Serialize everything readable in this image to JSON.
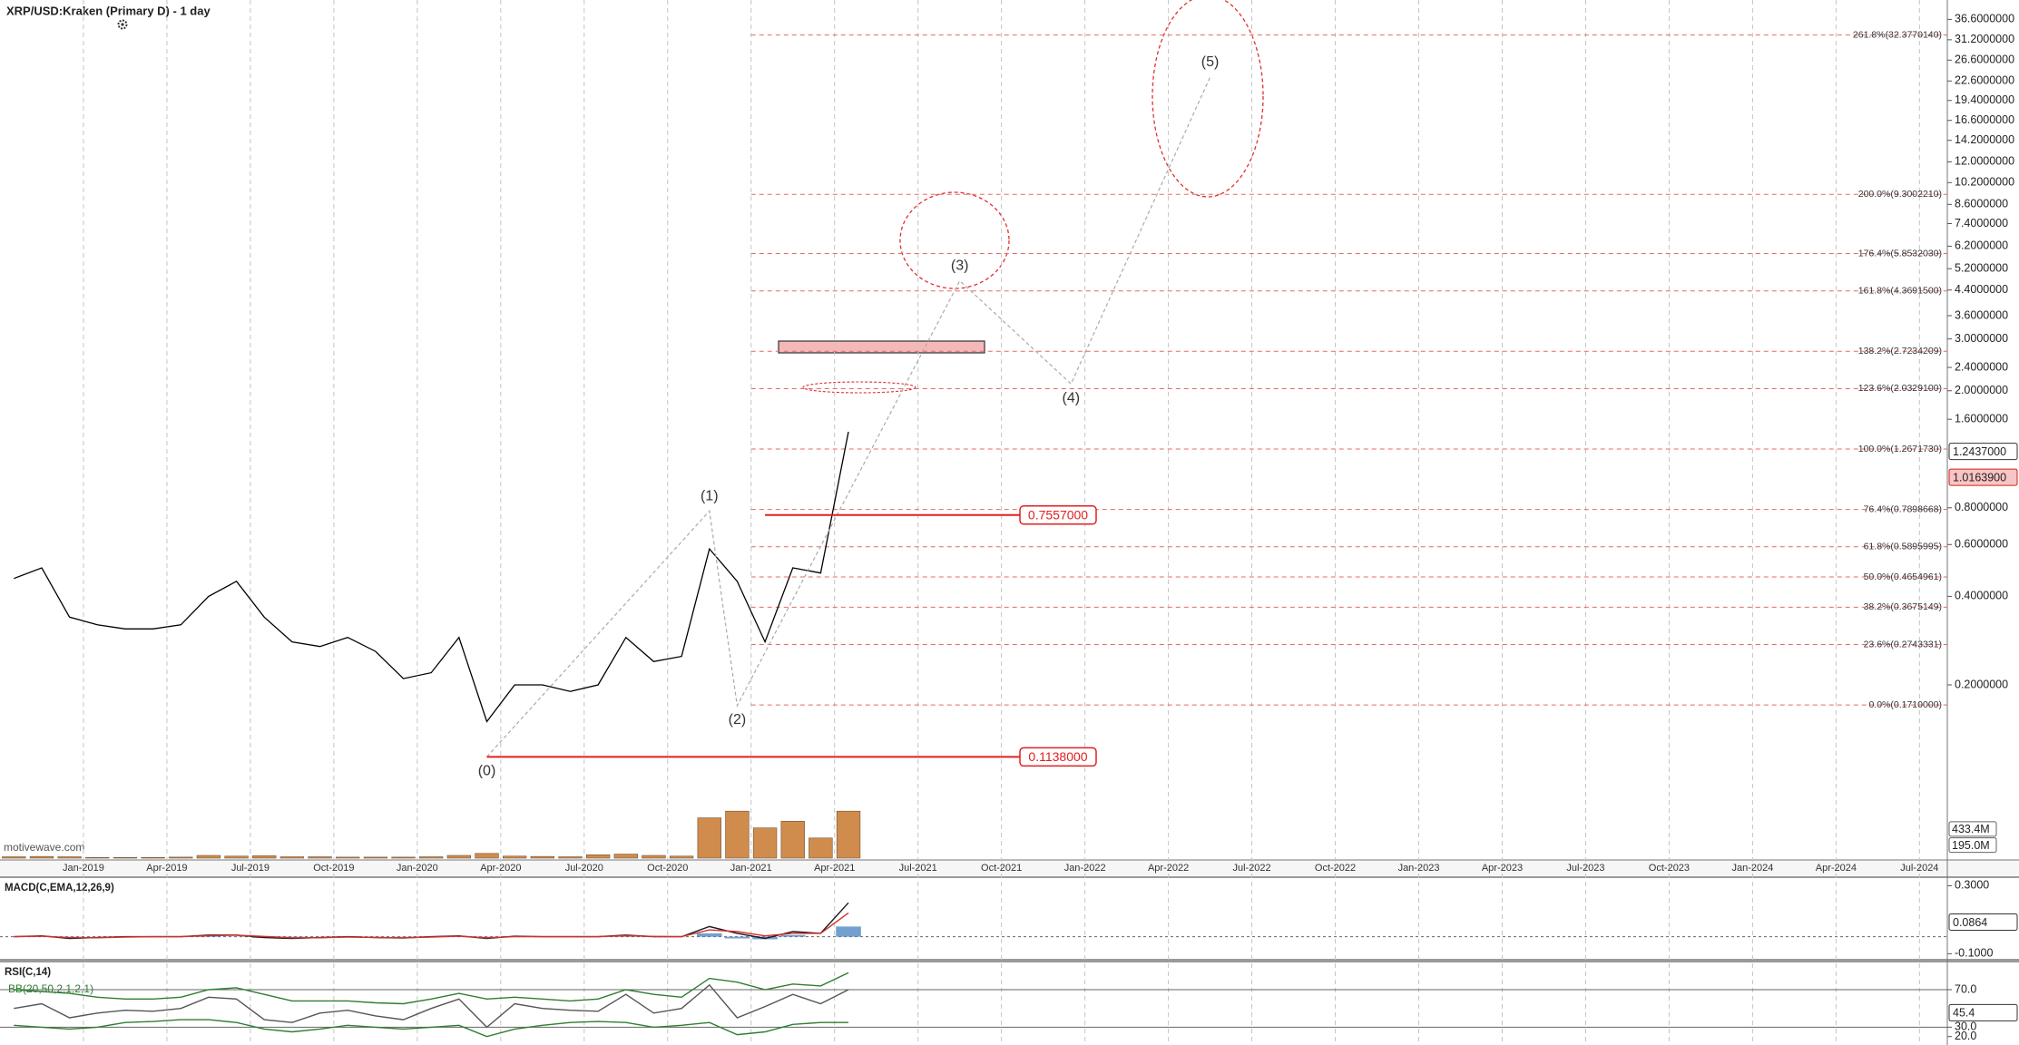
{
  "chart_data": [
    {
      "type": "line",
      "title": "XRP/USD:Kraken (Primary D) - 1 day",
      "watermark": "motivewave.com",
      "color": "#000000",
      "log_scale": true,
      "grid": true,
      "x": [
        "2018-10",
        "2018-11",
        "2018-12",
        "2019-01",
        "2019-02",
        "2019-03",
        "2019-04",
        "2019-05",
        "2019-06",
        "2019-07",
        "2019-08",
        "2019-09",
        "2019-10",
        "2019-11",
        "2019-12",
        "2020-01",
        "2020-02",
        "2020-03",
        "2020-04",
        "2020-05",
        "2020-06",
        "2020-07",
        "2020-08",
        "2020-09",
        "2020-10",
        "2020-11",
        "2020-12",
        "2021-01",
        "2021-02",
        "2021-03",
        "2021-04"
      ],
      "values": [
        0.46,
        0.5,
        0.34,
        0.32,
        0.31,
        0.31,
        0.32,
        0.4,
        0.45,
        0.34,
        0.28,
        0.27,
        0.29,
        0.26,
        0.21,
        0.22,
        0.29,
        0.15,
        0.2,
        0.2,
        0.19,
        0.2,
        0.29,
        0.24,
        0.25,
        0.58,
        0.45,
        0.28,
        0.5,
        0.48,
        1.45
      ],
      "xlim": [
        "2018-10",
        "2024-08"
      ],
      "xticks": [
        {
          "value": "2019-01",
          "label": "Jan-2019"
        },
        {
          "value": "2019-04",
          "label": "Apr-2019"
        },
        {
          "value": "2019-07",
          "label": "Jul-2019"
        },
        {
          "value": "2019-10",
          "label": "Oct-2019"
        },
        {
          "value": "2020-01",
          "label": "Jan-2020"
        },
        {
          "value": "2020-04",
          "label": "Apr-2020"
        },
        {
          "value": "2020-07",
          "label": "Jul-2020"
        },
        {
          "value": "2020-10",
          "label": "Oct-2020"
        },
        {
          "value": "2021-01",
          "label": "Jan-2021"
        },
        {
          "value": "2021-04",
          "label": "Apr-2021"
        },
        {
          "value": "2021-07",
          "label": "Jul-2021"
        },
        {
          "value": "2021-10",
          "label": "Oct-2021"
        },
        {
          "value": "2022-01",
          "label": "Jan-2022"
        },
        {
          "value": "2022-04",
          "label": "Apr-2022"
        },
        {
          "value": "2022-07",
          "label": "Jul-2022"
        },
        {
          "value": "2022-10",
          "label": "Oct-2022"
        },
        {
          "value": "2023-01",
          "label": "Jan-2023"
        },
        {
          "value": "2023-04",
          "label": "Apr-2023"
        },
        {
          "value": "2023-07",
          "label": "Jul-2023"
        },
        {
          "value": "2023-10",
          "label": "Oct-2023"
        },
        {
          "value": "2024-01",
          "label": "Jan-2024"
        },
        {
          "value": "2024-04",
          "label": "Apr-2024"
        },
        {
          "value": "2024-07",
          "label": "Jul-2024"
        }
      ],
      "ylim": [
        0.0508,
        42.6
      ],
      "yticks": [
        {
          "value": 36.6,
          "label": "36.6000000"
        },
        {
          "value": 31.2,
          "label": "31.2000000"
        },
        {
          "value": 26.6,
          "label": "26.6000000"
        },
        {
          "value": 22.6,
          "label": "22.6000000"
        },
        {
          "value": 19.4,
          "label": "19.4000000"
        },
        {
          "value": 16.6,
          "label": "16.6000000"
        },
        {
          "value": 14.2,
          "label": "14.2000000"
        },
        {
          "value": 12,
          "label": "12.0000000"
        },
        {
          "value": 10.2,
          "label": "10.2000000"
        },
        {
          "value": 8.6,
          "label": "8.6000000"
        },
        {
          "value": 7.4,
          "label": "7.4000000"
        },
        {
          "value": 6.2,
          "label": "6.2000000"
        },
        {
          "value": 5.2,
          "label": "5.2000000"
        },
        {
          "value": 4.4,
          "label": "4.4000000"
        },
        {
          "value": 3.6,
          "label": "3.6000000"
        },
        {
          "value": 3,
          "label": "3.0000000"
        },
        {
          "value": 2.4,
          "label": "2.4000000"
        },
        {
          "value": 2,
          "label": "2.0000000"
        },
        {
          "value": 1.6,
          "label": "1.6000000"
        },
        {
          "value": 0.8,
          "label": "0.8000000"
        },
        {
          "value": 0.6,
          "label": "0.6000000"
        },
        {
          "value": 0.4,
          "label": "0.4000000"
        },
        {
          "value": 0.2,
          "label": "0.2000000"
        }
      ],
      "price_tags": [
        {
          "value": 1.2437,
          "label": "1.2437000",
          "fill": "#ffffff",
          "stroke": "#333333"
        },
        {
          "value": 1.01639,
          "label": "1.0163900",
          "fill": "#f9c4c4",
          "stroke": "#d02020"
        }
      ],
      "volume": {
        "color": "#c8782e",
        "values": [
          20000000,
          25000000,
          20000000,
          10000000,
          10000000,
          10000000,
          15000000,
          40000000,
          30000000,
          35000000,
          20000000,
          20000000,
          15000000,
          15000000,
          15000000,
          20000000,
          40000000,
          70000000,
          30000000,
          25000000,
          20000000,
          50000000,
          60000000,
          40000000,
          30000000,
          600000000,
          700000000,
          450000000,
          550000000,
          300000000,
          700000000
        ],
        "ylim": [
          0,
          3000000000
        ],
        "yticks": [
          {
            "value": 433400000,
            "label": "433.4M"
          },
          {
            "value": 195000000,
            "label": "195.0M"
          }
        ]
      },
      "fib_levels": {
        "from": "2021-01",
        "color": "#e46a6a",
        "levels": [
          {
            "value": 32.377014,
            "label": "261.8%(32.3770140)"
          },
          {
            "value": 9.300221,
            "label": "200.0%(9.3002210)"
          },
          {
            "value": 5.853203,
            "label": "176.4%(5.8532030)"
          },
          {
            "value": 4.36915,
            "label": "161.8%(4.3691500)"
          },
          {
            "value": 2.7234209,
            "label": "138.2%(2.7234209)"
          },
          {
            "value": 2.03291,
            "label": "123.6%(2.0329100)"
          },
          {
            "value": 1.267173,
            "label": "100.0%(1.2671730)"
          },
          {
            "value": 0.7898668,
            "label": "76.4%(0.7898668)"
          },
          {
            "value": 0.5895995,
            "label": "61.8%(0.5895995)"
          },
          {
            "value": 0.4654961,
            "label": "50.0%(0.4654961)"
          },
          {
            "value": 0.3675149,
            "label": "38.2%(0.3675149)"
          },
          {
            "value": 0.2743331,
            "label": "23.6%(0.2743331)"
          },
          {
            "value": 0.171,
            "label": "0.0%(0.1710000)"
          }
        ]
      },
      "waves": {
        "color": "#aaaaaa",
        "points": [
          {
            "label": "(0)",
            "x": "2020-03",
            "value": 0.1138,
            "position": "below"
          },
          {
            "label": "(1)",
            "x": "2020-11",
            "value": 0.78,
            "position": "above"
          },
          {
            "label": "(2)",
            "x": "2020-12",
            "value": 0.17,
            "position": "below"
          },
          {
            "label": "(3)",
            "x": "2021-08",
            "value": 4.73,
            "position": "above"
          },
          {
            "label": "(4)",
            "x": "2021-12",
            "value": 2.11,
            "position": "below"
          },
          {
            "label": "(5)",
            "x": "2022-05",
            "value": 23.3,
            "position": "above"
          }
        ]
      },
      "hlines": [
        {
          "x": "2020-03",
          "value": 0.1138,
          "label": "0.1138000",
          "color": "#e02020"
        },
        {
          "x": "2021-01",
          "value": 0.7557,
          "label": "0.7557000",
          "color": "#e02020"
        }
      ]
    },
    {
      "type": "line",
      "title": "MACD(C,EMA,12,26,9)",
      "x": [
        "2018-10",
        "2018-11",
        "2018-12",
        "2019-01",
        "2019-02",
        "2019-03",
        "2019-04",
        "2019-05",
        "2019-06",
        "2019-07",
        "2019-08",
        "2019-09",
        "2019-10",
        "2019-11",
        "2019-12",
        "2020-01",
        "2020-02",
        "2020-03",
        "2020-04",
        "2020-05",
        "2020-06",
        "2020-07",
        "2020-08",
        "2020-09",
        "2020-10",
        "2020-11",
        "2020-12",
        "2021-01",
        "2021-02",
        "2021-03",
        "2021-04"
      ],
      "xlim": [
        "2018-10",
        "2024-08"
      ],
      "ylim": [
        -0.13,
        0.345
      ],
      "yticks": [
        {
          "value": 0.3,
          "label": "0.3000"
        },
        {
          "value": -0.1,
          "label": "-0.1000"
        }
      ],
      "ref_lines": [
        0
      ],
      "series": [
        {
          "color": "#1a1a1a",
          "values": [
            0,
            0.005,
            -0.01,
            -0.005,
            0,
            0,
            0,
            0.01,
            0.01,
            -0.005,
            -0.01,
            -0.005,
            0,
            -0.005,
            -0.008,
            0,
            0.005,
            -0.01,
            0.003,
            0,
            0,
            0,
            0.01,
            0,
            0,
            0.06,
            0.02,
            -0.01,
            0.03,
            0.02,
            0.2
          ]
        },
        {
          "color": "#d03030",
          "values": [
            0,
            0.003,
            -0.005,
            -0.006,
            -0.002,
            0,
            0,
            0.006,
            0.009,
            0.002,
            -0.006,
            -0.006,
            -0.002,
            -0.004,
            -0.006,
            -0.002,
            0.003,
            -0.006,
            0,
            0,
            0,
            0,
            0.006,
            0.002,
            0,
            0.04,
            0.03,
            0.005,
            0.02,
            0.02,
            0.14
          ]
        }
      ],
      "histogram": {
        "color": "#5b8fc7",
        "values": [
          0,
          0.002,
          -0.005,
          0.001,
          0.002,
          0,
          0,
          0.004,
          0.001,
          -0.007,
          -0.004,
          0.001,
          0.002,
          -0.001,
          -0.002,
          0.002,
          0.002,
          -0.004,
          0.003,
          0,
          0,
          0,
          0.004,
          -0.002,
          0,
          0.02,
          -0.01,
          -0.015,
          0.01,
          0,
          0.06
        ]
      },
      "price_tags": [
        {
          "value": 0.0864,
          "label": "0.0864",
          "fill": "#ffffff",
          "stroke": "#333333"
        }
      ]
    },
    {
      "type": "line",
      "title": "RSI(C,14)",
      "subtitle": "BB(20,50,2,1,2,1)",
      "x": [
        "2018-10",
        "2018-11",
        "2018-12",
        "2019-01",
        "2019-02",
        "2019-03",
        "2019-04",
        "2019-05",
        "2019-06",
        "2019-07",
        "2019-08",
        "2019-09",
        "2019-10",
        "2019-11",
        "2019-12",
        "2020-01",
        "2020-02",
        "2020-03",
        "2020-04",
        "2020-05",
        "2020-06",
        "2020-07",
        "2020-08",
        "2020-09",
        "2020-10",
        "2020-11",
        "2020-12",
        "2021-01",
        "2021-02",
        "2021-03",
        "2021-04"
      ],
      "xlim": [
        "2018-10",
        "2024-08"
      ],
      "ylim": [
        11,
        99
      ],
      "yticks": [
        {
          "value": 70,
          "label": "70.0"
        },
        {
          "value": 30,
          "label": "30.0"
        },
        {
          "value": 20,
          "label": "20.0"
        }
      ],
      "ref_lines": [
        70,
        30
      ],
      "series": [
        {
          "color": "#555555",
          "values": [
            50,
            55,
            40,
            45,
            48,
            47,
            50,
            62,
            60,
            38,
            35,
            45,
            48,
            42,
            38,
            50,
            60,
            30,
            55,
            50,
            48,
            47,
            65,
            45,
            50,
            75,
            40,
            52,
            65,
            55,
            70
          ]
        },
        {
          "color": "#2e7d32",
          "values": [
            70,
            68,
            66,
            62,
            60,
            60,
            62,
            70,
            72,
            65,
            58,
            58,
            58,
            56,
            55,
            60,
            66,
            60,
            62,
            60,
            58,
            60,
            70,
            65,
            62,
            82,
            78,
            70,
            76,
            74,
            88
          ]
        },
        {
          "color": "#2e7d32",
          "values": [
            32,
            30,
            28,
            30,
            35,
            36,
            38,
            38,
            35,
            28,
            25,
            28,
            32,
            30,
            28,
            30,
            32,
            20,
            28,
            32,
            35,
            36,
            35,
            30,
            32,
            35,
            22,
            25,
            33,
            35,
            35
          ]
        }
      ],
      "price_tags": [
        {
          "value": 45.4,
          "label": "45.4",
          "fill": "#ffffff",
          "stroke": "#333333"
        }
      ]
    }
  ]
}
